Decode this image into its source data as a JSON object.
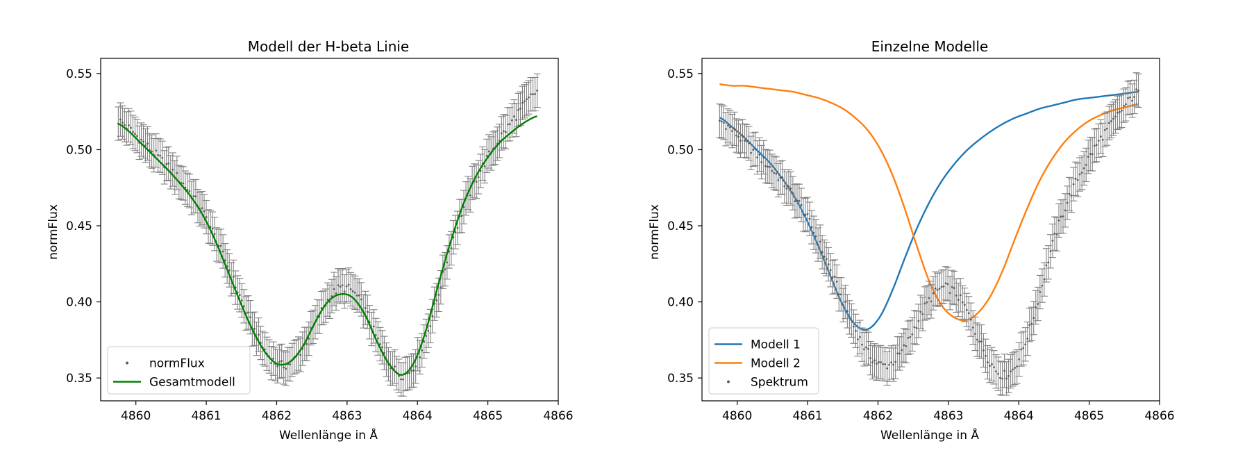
{
  "colors": {
    "data": "#808080",
    "c0": "#1f77b4",
    "c1": "#ff7f0e",
    "c2": "#008000"
  },
  "chart_data": [
    {
      "type": "line",
      "title": "Modell der H-beta Linie",
      "xlabel": "Wellenlänge in Å",
      "ylabel": "normFlux",
      "xlim": [
        4859.5,
        4866
      ],
      "ylim": [
        0.335,
        0.56
      ],
      "xticks": [
        4860,
        4861,
        4862,
        4863,
        4864,
        4865,
        4866
      ],
      "yticks": [
        0.35,
        0.4,
        0.45,
        0.5,
        0.55
      ],
      "grid": false,
      "legend_placement": "lower left",
      "series": [
        {
          "name": "normFlux",
          "kind": "errorbar-points",
          "color": "#808080",
          "x_range": [
            4859.75,
            4865.7
          ],
          "y_samples": [
            0.519,
            0.513,
            0.505,
            0.497,
            0.489,
            0.48,
            0.47,
            0.457,
            0.44,
            0.421,
            0.401,
            0.382,
            0.367,
            0.359,
            0.36,
            0.37,
            0.386,
            0.401,
            0.409,
            0.407,
            0.395,
            0.376,
            0.36,
            0.352,
            0.358,
            0.378,
            0.406,
            0.437,
            0.461,
            0.48,
            0.495,
            0.508,
            0.519,
            0.53,
            0.538
          ],
          "error": 0.011
        },
        {
          "name": "Gesamtmodell",
          "kind": "line",
          "color": "#008000",
          "x_range": [
            4859.75,
            4865.7
          ],
          "y_samples": [
            0.517,
            0.511,
            0.503,
            0.495,
            0.487,
            0.478,
            0.468,
            0.455,
            0.438,
            0.418,
            0.398,
            0.38,
            0.366,
            0.359,
            0.361,
            0.371,
            0.387,
            0.4,
            0.405,
            0.403,
            0.392,
            0.374,
            0.359,
            0.352,
            0.36,
            0.382,
            0.412,
            0.44,
            0.464,
            0.482,
            0.495,
            0.505,
            0.512,
            0.518,
            0.522
          ]
        }
      ]
    },
    {
      "type": "line",
      "title": "Einzelne Modelle",
      "xlabel": "Wellenlänge in Å",
      "ylabel": "normFlux",
      "xlim": [
        4859.5,
        4866
      ],
      "ylim": [
        0.335,
        0.56
      ],
      "xticks": [
        4860,
        4861,
        4862,
        4863,
        4864,
        4865,
        4866
      ],
      "yticks": [
        0.35,
        0.4,
        0.45,
        0.5,
        0.55
      ],
      "grid": false,
      "legend_placement": "lower left",
      "series": [
        {
          "name": "Modell 1",
          "kind": "line",
          "color": "#1f77b4",
          "x_range": [
            4859.75,
            4865.7
          ],
          "y_samples": [
            0.521,
            0.515,
            0.508,
            0.5,
            0.492,
            0.482,
            0.47,
            0.455,
            0.437,
            0.417,
            0.398,
            0.385,
            0.382,
            0.39,
            0.407,
            0.428,
            0.448,
            0.465,
            0.479,
            0.49,
            0.499,
            0.506,
            0.512,
            0.517,
            0.521,
            0.524,
            0.527,
            0.529,
            0.531,
            0.533,
            0.534,
            0.535,
            0.536,
            0.537,
            0.538
          ]
        },
        {
          "name": "Modell 2",
          "kind": "line",
          "color": "#ff7f0e",
          "x_range": [
            4859.75,
            4865.7
          ],
          "y_samples": [
            0.543,
            0.542,
            0.542,
            0.541,
            0.54,
            0.539,
            0.538,
            0.536,
            0.534,
            0.531,
            0.527,
            0.521,
            0.513,
            0.501,
            0.484,
            0.462,
            0.437,
            0.414,
            0.398,
            0.39,
            0.388,
            0.393,
            0.404,
            0.421,
            0.442,
            0.462,
            0.48,
            0.494,
            0.505,
            0.513,
            0.519,
            0.523,
            0.526,
            0.528,
            0.53
          ]
        },
        {
          "name": "Spektrum",
          "kind": "errorbar-points",
          "color": "#808080",
          "x_range": [
            4859.75,
            4865.7
          ],
          "y_samples": [
            0.519,
            0.513,
            0.505,
            0.497,
            0.489,
            0.48,
            0.47,
            0.457,
            0.44,
            0.421,
            0.401,
            0.382,
            0.367,
            0.359,
            0.36,
            0.37,
            0.386,
            0.401,
            0.409,
            0.407,
            0.395,
            0.376,
            0.36,
            0.352,
            0.358,
            0.378,
            0.406,
            0.437,
            0.461,
            0.48,
            0.495,
            0.508,
            0.519,
            0.53,
            0.538
          ],
          "error": 0.011
        }
      ]
    }
  ]
}
